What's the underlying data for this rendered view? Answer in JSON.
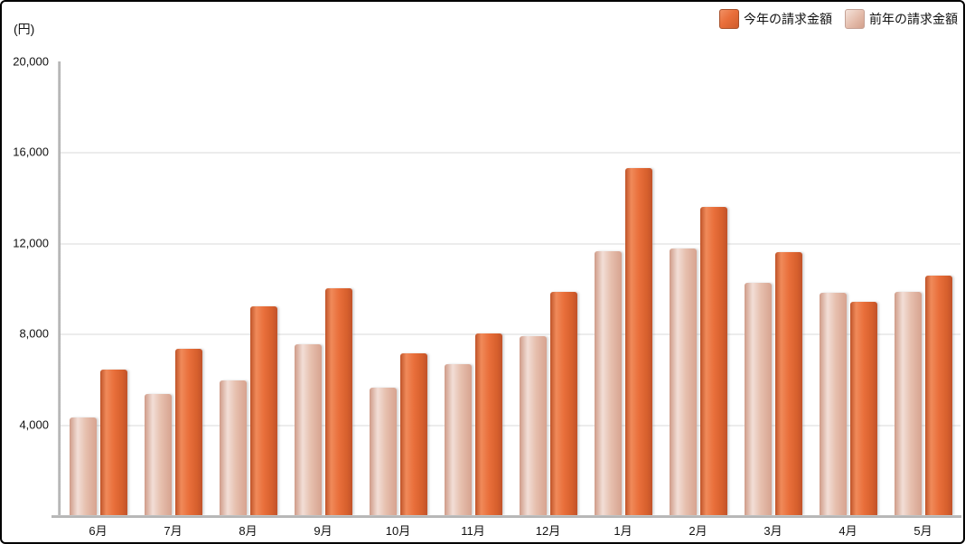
{
  "chart_data": {
    "type": "bar",
    "title": "",
    "unit_label": "(円)",
    "categories": [
      "6月",
      "7月",
      "8月",
      "9月",
      "10月",
      "11月",
      "12月",
      "1月",
      "2月",
      "3月",
      "4月",
      "5月"
    ],
    "series": [
      {
        "name": "今年の請求金額",
        "color": "#e96f3b",
        "values": [
          6400,
          7350,
          9200,
          10000,
          7150,
          8000,
          9850,
          15300,
          13600,
          11600,
          9400,
          10550
        ]
      },
      {
        "name": "前年の請求金額",
        "color": "#e6bfae",
        "values": [
          4300,
          5350,
          5950,
          7550,
          5600,
          6650,
          7900,
          11650,
          11750,
          10250,
          9800,
          9850
        ]
      }
    ],
    "ylim": [
      0,
      20000
    ],
    "yticks": [
      20000,
      16000,
      12000,
      8000,
      4000
    ],
    "ytick_labels": [
      "20,000",
      "16,000",
      "12,000",
      "8,000",
      "4,000"
    ],
    "xlabel": "",
    "ylabel": "(円)",
    "grid": true,
    "legend_position": "top-right",
    "bar_draw_order": [
      "前年の請求金額",
      "今年の請求金額"
    ]
  }
}
